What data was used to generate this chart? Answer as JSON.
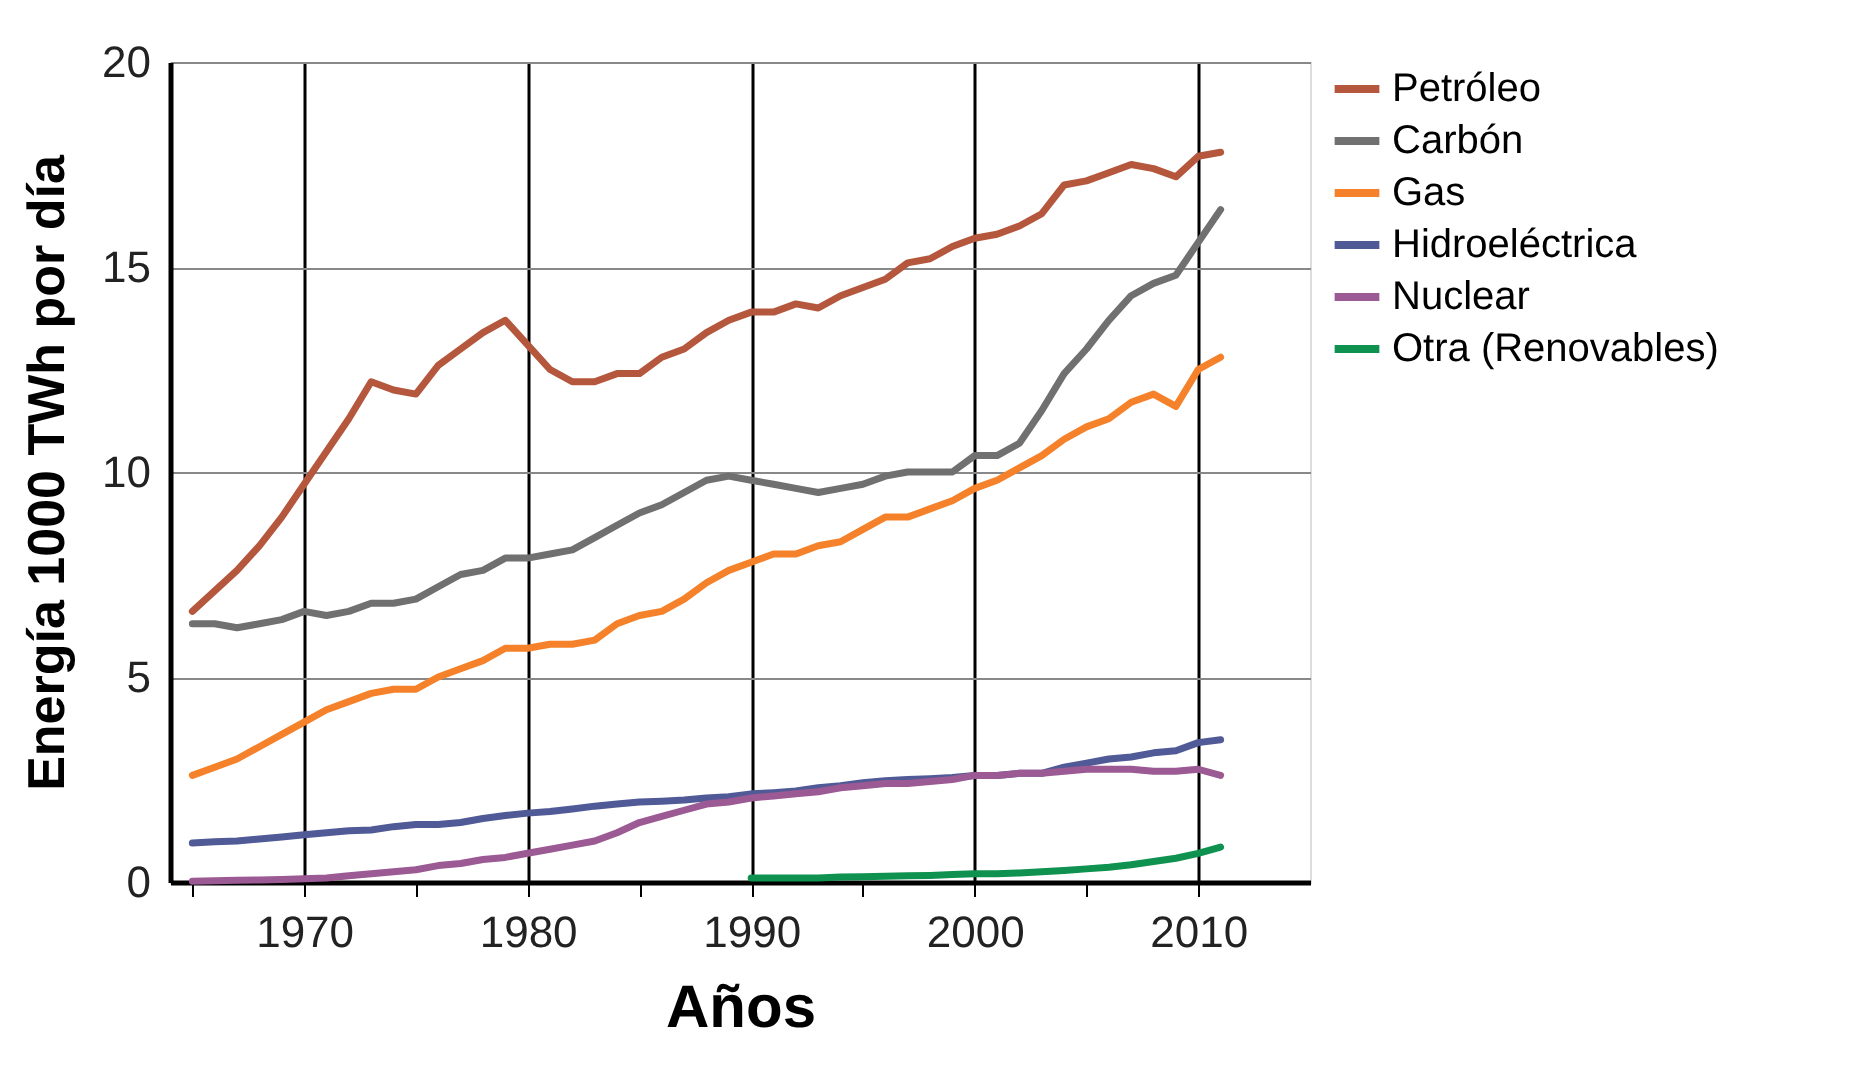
{
  "chart_data": {
    "type": "line",
    "xlabel": "Años",
    "ylabel": "Energía 1000 TWh por día",
    "x": [
      1965,
      1966,
      1967,
      1968,
      1969,
      1970,
      1971,
      1972,
      1973,
      1974,
      1975,
      1976,
      1977,
      1978,
      1979,
      1980,
      1981,
      1982,
      1983,
      1984,
      1985,
      1986,
      1987,
      1988,
      1989,
      1990,
      1991,
      1992,
      1993,
      1994,
      1995,
      1996,
      1997,
      1998,
      1999,
      2000,
      2001,
      2002,
      2003,
      2004,
      2005,
      2006,
      2007,
      2008,
      2009,
      2010,
      2011
    ],
    "xlim": [
      1964,
      2015
    ],
    "xticks": [
      {
        "value": 1965,
        "label": null
      },
      1970,
      {
        "value": 1975,
        "label": null
      },
      1980,
      {
        "value": 1985,
        "label": null
      },
      1990,
      {
        "value": 1995,
        "label": null
      },
      2000,
      {
        "value": 2005,
        "label": null
      },
      2010
    ],
    "ylim": [
      0,
      20
    ],
    "yticks": [
      0,
      5,
      10,
      15,
      20
    ],
    "grid": true,
    "legend": "right",
    "marker": "none",
    "line_style": "solid",
    "series": [
      {
        "name": "Petróleo",
        "color": "#b5573d",
        "values": [
          6.6,
          7.1,
          7.6,
          8.2,
          8.9,
          9.7,
          10.5,
          11.3,
          12.2,
          12.0,
          11.9,
          12.6,
          13.0,
          13.4,
          13.7,
          13.1,
          12.5,
          12.2,
          12.2,
          12.4,
          12.4,
          12.8,
          13.0,
          13.4,
          13.7,
          13.9,
          13.9,
          14.1,
          14.0,
          14.3,
          14.5,
          14.7,
          15.1,
          15.2,
          15.5,
          15.7,
          15.8,
          16.0,
          16.3,
          17.0,
          17.1,
          17.3,
          17.5,
          17.4,
          17.2,
          17.7,
          17.8
        ]
      },
      {
        "name": "Carbón",
        "color": "#707070",
        "values": [
          6.3,
          6.3,
          6.2,
          6.3,
          6.4,
          6.6,
          6.5,
          6.6,
          6.8,
          6.8,
          6.9,
          7.2,
          7.5,
          7.6,
          7.9,
          7.9,
          8.0,
          8.1,
          8.4,
          8.7,
          9.0,
          9.2,
          9.5,
          9.8,
          9.9,
          9.8,
          9.7,
          9.6,
          9.5,
          9.6,
          9.7,
          9.9,
          10.0,
          10.0,
          10.0,
          10.4,
          10.4,
          10.7,
          11.5,
          12.4,
          13.0,
          13.7,
          14.3,
          14.6,
          14.8,
          15.6,
          16.4
        ]
      },
      {
        "name": "Gas",
        "color": "#f5822a",
        "values": [
          2.6,
          2.8,
          3.0,
          3.3,
          3.6,
          3.9,
          4.2,
          4.4,
          4.6,
          4.7,
          4.7,
          5.0,
          5.2,
          5.4,
          5.7,
          5.7,
          5.8,
          5.8,
          5.9,
          6.3,
          6.5,
          6.6,
          6.9,
          7.3,
          7.6,
          7.8,
          8.0,
          8.0,
          8.2,
          8.3,
          8.6,
          8.9,
          8.9,
          9.1,
          9.3,
          9.6,
          9.8,
          10.1,
          10.4,
          10.8,
          11.1,
          11.3,
          11.7,
          11.9,
          11.6,
          12.5,
          12.8
        ]
      },
      {
        "name": "Hidroeléctrica",
        "color": "#505a96",
        "values": [
          0.95,
          0.98,
          1.0,
          1.05,
          1.1,
          1.15,
          1.2,
          1.25,
          1.27,
          1.35,
          1.4,
          1.4,
          1.45,
          1.55,
          1.62,
          1.68,
          1.72,
          1.78,
          1.85,
          1.9,
          1.95,
          1.97,
          2.0,
          2.05,
          2.08,
          2.15,
          2.18,
          2.22,
          2.3,
          2.35,
          2.42,
          2.47,
          2.5,
          2.52,
          2.55,
          2.6,
          2.6,
          2.65,
          2.65,
          2.8,
          2.9,
          3.0,
          3.05,
          3.15,
          3.2,
          3.4,
          3.47
        ]
      },
      {
        "name": "Nuclear",
        "color": "#9b5a94",
        "values": [
          0.02,
          0.03,
          0.04,
          0.05,
          0.06,
          0.08,
          0.1,
          0.15,
          0.2,
          0.25,
          0.3,
          0.4,
          0.45,
          0.55,
          0.6,
          0.7,
          0.8,
          0.9,
          1.0,
          1.2,
          1.45,
          1.6,
          1.75,
          1.9,
          1.95,
          2.05,
          2.1,
          2.15,
          2.2,
          2.3,
          2.35,
          2.4,
          2.4,
          2.45,
          2.5,
          2.6,
          2.6,
          2.65,
          2.65,
          2.7,
          2.75,
          2.75,
          2.75,
          2.7,
          2.7,
          2.75,
          2.6
        ]
      },
      {
        "name": "Otra   (Renovables)",
        "color": "#0f9150",
        "x": [
          1990,
          1991,
          1992,
          1993,
          1994,
          1995,
          1996,
          1997,
          1998,
          1999,
          2000,
          2001,
          2002,
          2003,
          2004,
          2005,
          2006,
          2007,
          2008,
          2009,
          2010,
          2011
        ],
        "values": [
          0.1,
          0.1,
          0.1,
          0.1,
          0.12,
          0.13,
          0.14,
          0.15,
          0.16,
          0.18,
          0.2,
          0.2,
          0.22,
          0.25,
          0.28,
          0.32,
          0.36,
          0.42,
          0.5,
          0.58,
          0.7,
          0.85
        ]
      }
    ]
  }
}
